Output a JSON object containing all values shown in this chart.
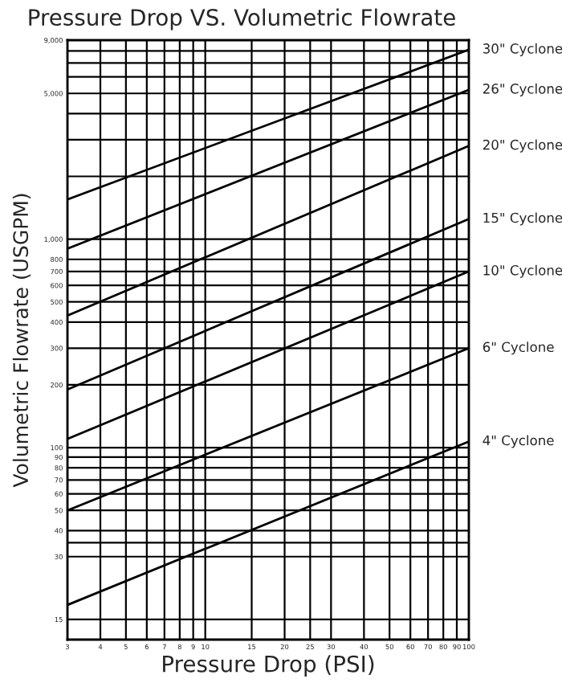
{
  "chart_data": {
    "type": "line",
    "title": "Pressure Drop VS. Volumetric Flowrate",
    "xlabel": "Pressure Drop (PSI)",
    "ylabel": "Volumetric Flowrate (USGPM)",
    "log": "xy",
    "grid": true,
    "xlim": [
      3,
      100
    ],
    "ylim": [
      12,
      9000
    ],
    "xticks": [
      3,
      4,
      5,
      6,
      7,
      8,
      9,
      10,
      15,
      20,
      25,
      30,
      40,
      50,
      60,
      70,
      80,
      90,
      100
    ],
    "yticks": [
      {
        "value": 15,
        "label": "15"
      },
      {
        "value": 30,
        "label": "30"
      },
      {
        "value": 35,
        "label": null
      },
      {
        "value": 40,
        "label": "40"
      },
      {
        "value": 50,
        "label": "50"
      },
      {
        "value": 60,
        "label": "60"
      },
      {
        "value": 70,
        "label": "70"
      },
      {
        "value": 80,
        "label": "80"
      },
      {
        "value": 90,
        "label": "90"
      },
      {
        "value": 100,
        "label": "100"
      },
      {
        "value": 200,
        "label": "200"
      },
      {
        "value": 300,
        "label": "300"
      },
      {
        "value": 400,
        "label": "400"
      },
      {
        "value": 500,
        "label": "500"
      },
      {
        "value": 600,
        "label": "600"
      },
      {
        "value": 700,
        "label": "700"
      },
      {
        "value": 800,
        "label": "800"
      },
      {
        "value": 1000,
        "label": "1,000"
      },
      {
        "value": 2000,
        "label": null
      },
      {
        "value": 3000,
        "label": null
      },
      {
        "value": 4000,
        "label": null
      },
      {
        "value": 5000,
        "label": "5,000"
      },
      {
        "value": 6000,
        "label": null
      },
      {
        "value": 7000,
        "label": null
      },
      {
        "value": 8000,
        "label": null
      },
      {
        "value": 9000,
        "label": "9,000"
      }
    ],
    "x": [
      3,
      100
    ],
    "series": [
      {
        "name": "30\" Cyclone",
        "color": "#000000",
        "values": [
          1550,
          8100
        ]
      },
      {
        "name": "26\" Cyclone",
        "color": "#000000",
        "values": [
          900,
          5200
        ]
      },
      {
        "name": "20\" Cyclone",
        "color": "#000000",
        "values": [
          430,
          2800
        ]
      },
      {
        "name": "15\" Cyclone",
        "color": "#000000",
        "values": [
          190,
          1250
        ]
      },
      {
        "name": "10\" Cyclone",
        "color": "#000000",
        "values": [
          110,
          700
        ]
      },
      {
        "name": "6\" Cyclone",
        "color": "#000000",
        "values": [
          50,
          300
        ]
      },
      {
        "name": "4\" Cyclone",
        "color": "#000000",
        "values": [
          17.6,
          107
        ]
      }
    ]
  }
}
